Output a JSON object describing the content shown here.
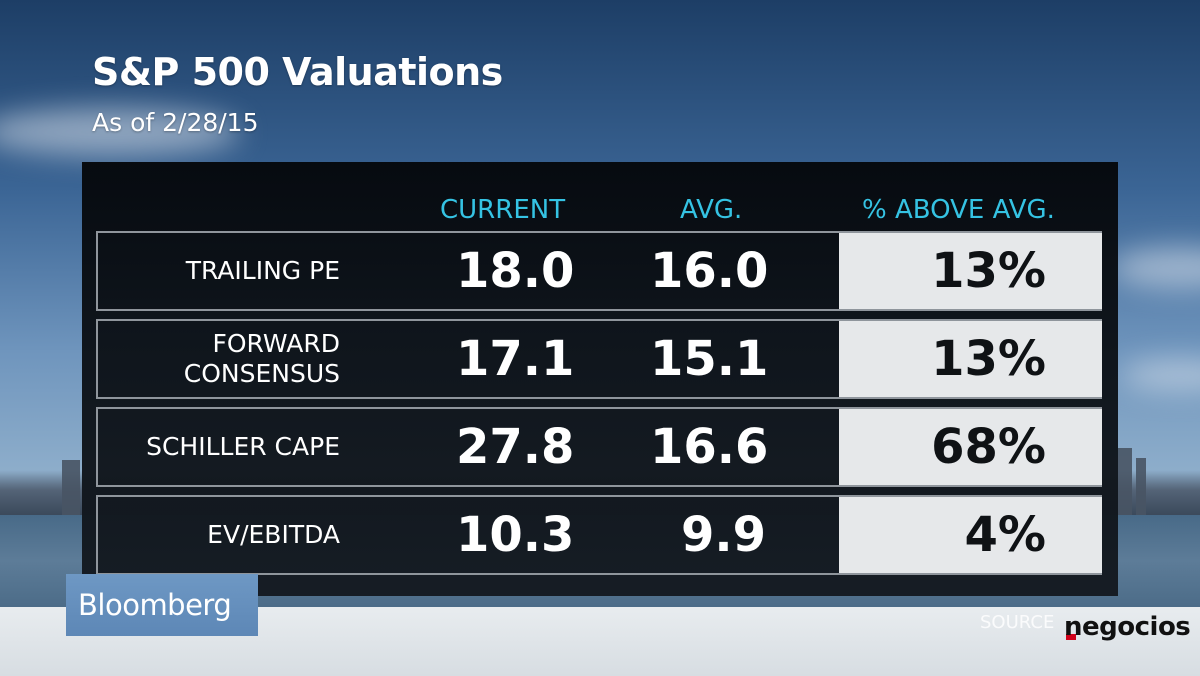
{
  "title": "S&P 500 Valuations",
  "subtitle": "As of 2/28/15",
  "chart_data": {
    "type": "table",
    "columns": [
      "CURRENT",
      "AVG.",
      "% ABOVE AVG."
    ],
    "rows": [
      {
        "label": "TRAILING PE",
        "current": "18.0",
        "avg": "16.0",
        "pct_above_avg": "13%"
      },
      {
        "label": "FORWARD\nCONSENSUS",
        "current": "17.1",
        "avg": "15.1",
        "pct_above_avg": "13%"
      },
      {
        "label": "SCHILLER CAPE",
        "current": "27.8",
        "avg": "16.6",
        "pct_above_avg": "68%"
      },
      {
        "label": "EV/EBITDA",
        "current": "10.3",
        "avg": "9.9",
        "pct_above_avg": "4%"
      }
    ]
  },
  "branding": {
    "network": "Bloomberg",
    "source_label": "SOURCE",
    "outlet": "negocios"
  },
  "colors": {
    "header_accent": "#35c3e3",
    "panel": "#0c1117",
    "highlight_box": "#e6e8ea",
    "bloomberg_tag": "#6e98c4",
    "negocios_red": "#d0021b"
  }
}
